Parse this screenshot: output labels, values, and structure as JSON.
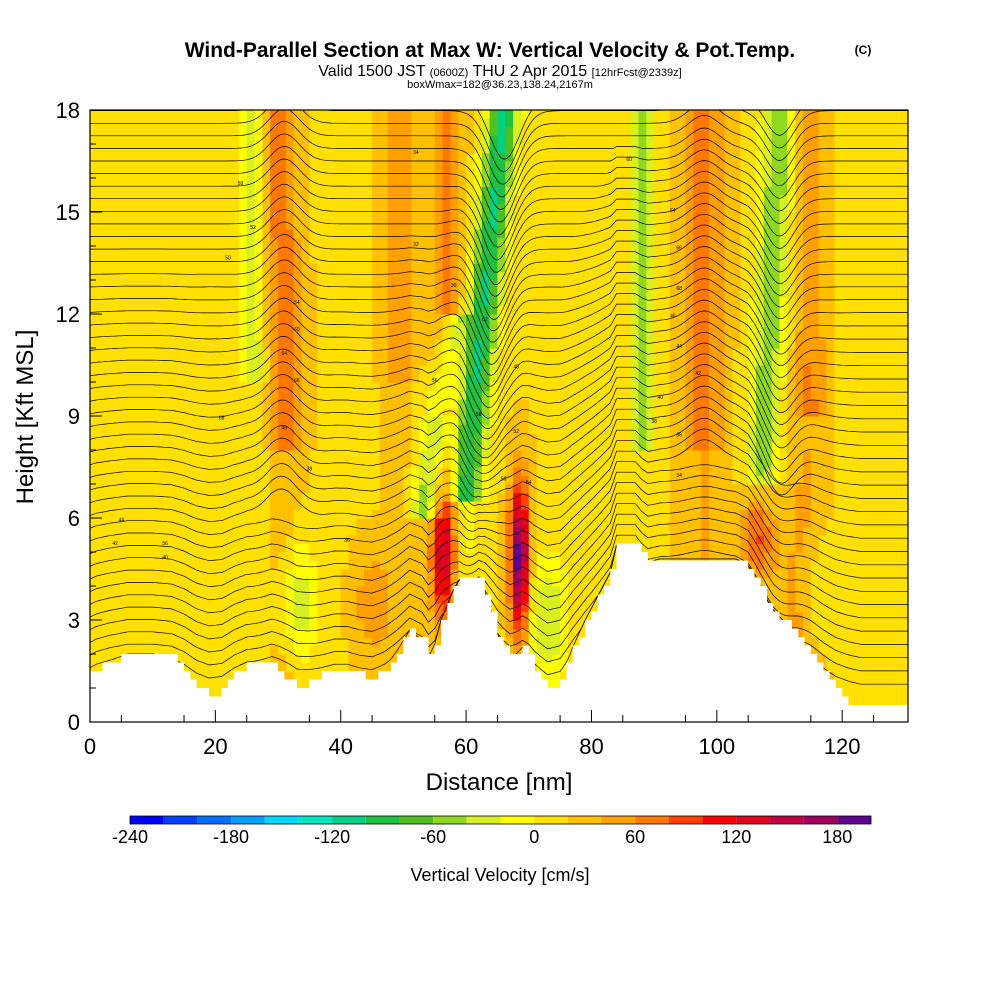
{
  "chart_data": {
    "type": "heatmap",
    "title": "Wind-Parallel Section at Max W: Vertical Velocity & Pot.Temp.",
    "title_mark": "(C)",
    "subtitle": {
      "valid": "Valid 1500 JST",
      "utc": "(0600Z)",
      "date": "THU 2 Apr 2015",
      "fcst": "[12hrFcst@2339z]"
    },
    "box_info": "boxWmax=182@36.23,138.24,2167m",
    "xlabel": "Distance [nm]",
    "ylabel": "Height [Kft MSL]",
    "xlim": [
      0,
      130.5
    ],
    "ylim": [
      0,
      18
    ],
    "x_ticks": [
      "0",
      "20",
      "40",
      "60",
      "80",
      "100",
      "120"
    ],
    "y_ticks": [
      "0",
      "3",
      "6",
      "9",
      "12",
      "15",
      "18"
    ],
    "colorbar": {
      "label": "Vertical Velocity [cm/s]",
      "range": [
        -240,
        210
      ],
      "step": 20,
      "tick_labels": [
        "-240",
        "-180",
        "-120",
        "-60",
        "0",
        "60",
        "120",
        "180"
      ],
      "colors": [
        "#0000ff",
        "#0040ff",
        "#0070ff",
        "#00a0ff",
        "#00d8ff",
        "#00e8c0",
        "#00d080",
        "#20c040",
        "#50c020",
        "#90d820",
        "#d8f020",
        "#ffff00",
        "#ffe000",
        "#ffc000",
        "#ffa000",
        "#ff7800",
        "#ff4000",
        "#ff0000",
        "#e00020",
        "#c00040",
        "#a00060",
        "#600090"
      ]
    },
    "terrain_kft": [
      [
        0,
        1.4
      ],
      [
        1,
        1.6
      ],
      [
        3,
        1.8
      ],
      [
        6,
        2.0
      ],
      [
        10,
        2.0
      ],
      [
        13,
        1.9
      ],
      [
        15,
        1.6
      ],
      [
        17,
        1.1
      ],
      [
        19,
        0.8
      ],
      [
        21,
        0.9
      ],
      [
        23,
        1.4
      ],
      [
        25,
        1.7
      ],
      [
        29,
        1.7
      ],
      [
        31,
        1.3
      ],
      [
        33,
        1.0
      ],
      [
        35,
        1.2
      ],
      [
        37,
        1.4
      ],
      [
        39,
        1.6
      ],
      [
        41,
        1.6
      ],
      [
        43,
        1.4
      ],
      [
        45,
        1.3
      ],
      [
        47,
        1.6
      ],
      [
        49,
        2.1
      ],
      [
        51,
        2.7
      ],
      [
        53,
        2.4
      ],
      [
        54,
        1.9
      ],
      [
        55,
        2.3
      ],
      [
        56,
        3.0
      ],
      [
        58,
        3.9
      ],
      [
        59,
        4.2
      ],
      [
        62,
        4.2
      ],
      [
        63,
        3.8
      ],
      [
        64,
        3.2
      ],
      [
        65,
        2.6
      ],
      [
        66,
        2.2
      ],
      [
        67,
        1.9
      ],
      [
        68,
        2.0
      ],
      [
        69,
        2.2
      ],
      [
        70,
        2.0
      ],
      [
        71,
        1.6
      ],
      [
        73,
        1.0
      ],
      [
        75,
        1.2
      ],
      [
        77,
        2.2
      ],
      [
        79,
        3.0
      ],
      [
        81,
        3.7
      ],
      [
        83,
        4.4
      ],
      [
        84,
        5.2
      ],
      [
        87,
        5.2
      ],
      [
        88,
        4.9
      ],
      [
        89,
        4.7
      ],
      [
        91,
        4.8
      ],
      [
        103,
        4.8
      ],
      [
        105,
        4.6
      ],
      [
        107,
        3.9
      ],
      [
        109,
        3.3
      ],
      [
        111,
        2.9
      ],
      [
        113,
        2.5
      ],
      [
        115,
        2.0
      ],
      [
        117,
        1.4
      ],
      [
        119,
        0.9
      ],
      [
        121,
        0.6
      ],
      [
        123,
        0.4
      ],
      [
        130.5,
        0.4
      ]
    ],
    "vertical_velocity_cells": [
      {
        "x": [
          54,
          58
        ],
        "y": [
          3.0,
          6.5
        ],
        "w": 120
      },
      {
        "x": [
          66,
          70
        ],
        "y": [
          2.2,
          7.5
        ],
        "w": 182
      },
      {
        "x": [
          30,
          34
        ],
        "y": [
          9,
          18
        ],
        "w": 60
      },
      {
        "x": [
          62,
          66
        ],
        "y": [
          6,
          18
        ],
        "w": -120
      },
      {
        "x": [
          105,
          110
        ],
        "y": [
          4,
          7
        ],
        "w": 90
      },
      {
        "x": [
          109,
          113
        ],
        "y": [
          8,
          18
        ],
        "w": -90
      }
    ],
    "isentrope_labels": [
      "56",
      "58",
      "52",
      "50",
      "54",
      "60",
      "64",
      "66",
      "68",
      "46",
      "44",
      "42",
      "40",
      "38",
      "36",
      "34",
      "32",
      "30",
      "62",
      "48"
    ],
    "grid": false
  }
}
